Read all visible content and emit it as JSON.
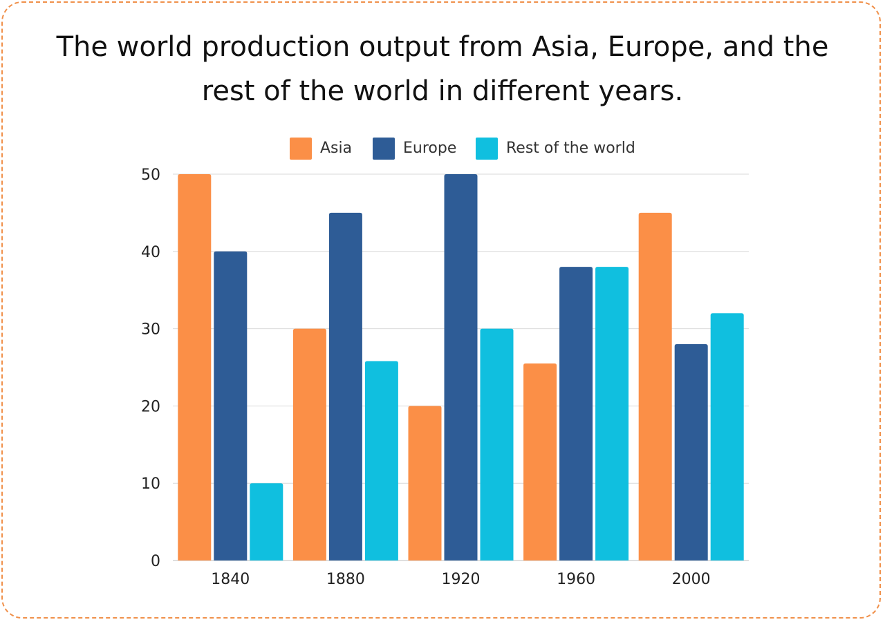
{
  "title_lines": [
    "The world production output from Asia, Europe, and the",
    "rest of the world in different years."
  ],
  "colors": {
    "frame": "#f0904a",
    "grid": "#d9d9d9",
    "axis": "#bfbfbf"
  },
  "chart_data": {
    "type": "bar",
    "title": "The world production output from Asia, Europe, and the rest of the world in different years.",
    "xlabel": "",
    "ylabel": "",
    "categories": [
      "1840",
      "1880",
      "1920",
      "1960",
      "2000"
    ],
    "series": [
      {
        "name": "Asia",
        "color": "#fb8f47",
        "values": [
          50,
          30,
          20,
          25.5,
          45
        ]
      },
      {
        "name": "Europe",
        "color": "#2e5c96",
        "values": [
          40,
          45,
          50,
          38,
          28
        ]
      },
      {
        "name": "Rest of the world",
        "color": "#10bfdf",
        "values": [
          10,
          25.8,
          30,
          38,
          32
        ]
      }
    ],
    "ylim": [
      0,
      50
    ],
    "yticks": [
      0,
      10,
      20,
      30,
      40,
      50
    ],
    "grid": true,
    "legend_position": "top-center"
  }
}
